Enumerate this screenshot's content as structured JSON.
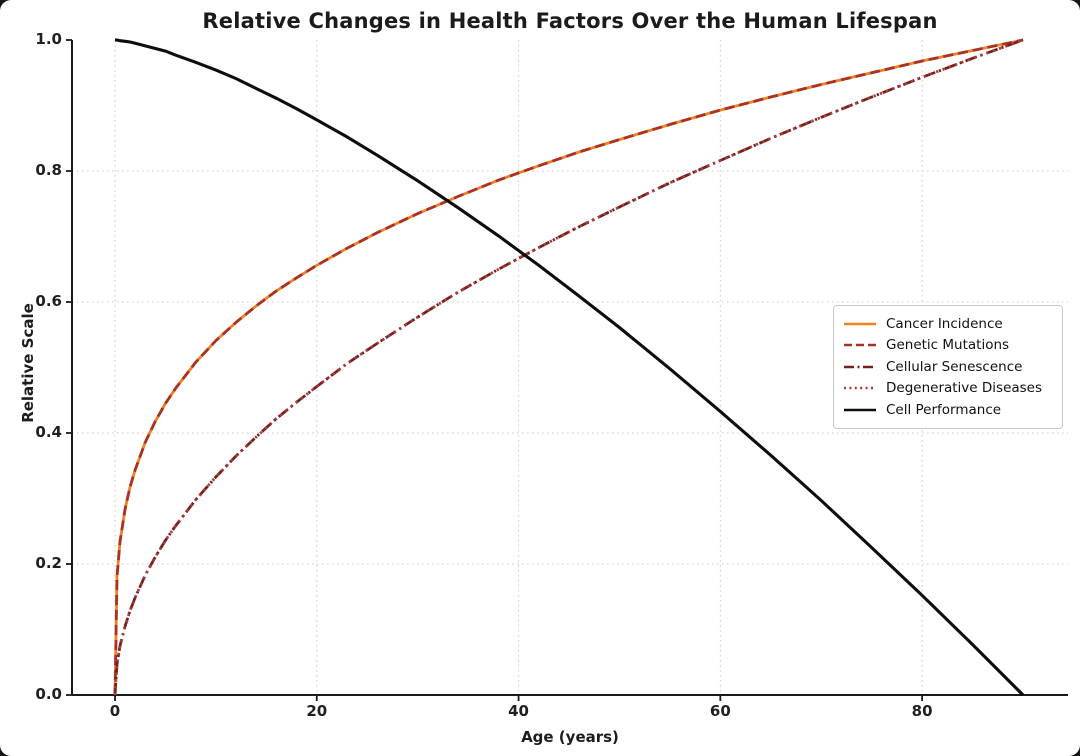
{
  "chart_data": {
    "type": "line",
    "title": "Relative Changes in Health Factors Over the Human Lifespan",
    "xlabel": "Age (years)",
    "ylabel": "Relative Scale",
    "xlim": [
      -4.3,
      94.5
    ],
    "ylim": [
      0,
      1.0
    ],
    "x_ticks": [
      0,
      20,
      40,
      60,
      80
    ],
    "y_ticks": [
      0,
      0.2,
      0.4,
      0.6,
      0.8,
      1.0
    ],
    "x_tick_labels": [
      "0",
      "20",
      "40",
      "60",
      "80"
    ],
    "y_tick_labels": [
      "0.0",
      "0.2",
      "0.4",
      "0.6",
      "0.8",
      "1.0"
    ],
    "grid": "dotted light-gray at every tick",
    "legend_position": "center right",
    "x": [
      0,
      0.2,
      0.5,
      1,
      1.5,
      2,
      3,
      4,
      5,
      6,
      8,
      10,
      12,
      14,
      16,
      18,
      20,
      23,
      26,
      30,
      34,
      38,
      42,
      46,
      50,
      55,
      60,
      65,
      70,
      75,
      80,
      85,
      90
    ],
    "series": [
      {
        "name": "Cancer Incidence",
        "color": "#EE8122",
        "style": "solid",
        "values": [
          0,
          0.181,
          0.234,
          0.284,
          0.318,
          0.344,
          0.386,
          0.418,
          0.445,
          0.468,
          0.508,
          0.541,
          0.569,
          0.594,
          0.617,
          0.637,
          0.656,
          0.682,
          0.706,
          0.735,
          0.761,
          0.786,
          0.808,
          0.829,
          0.848,
          0.871,
          0.893,
          0.913,
          0.932,
          0.95,
          0.968,
          0.984,
          1.0
        ]
      },
      {
        "name": "Genetic Mutations",
        "color": "#A93226",
        "style": "dashed",
        "values": [
          0,
          0.181,
          0.234,
          0.284,
          0.318,
          0.344,
          0.386,
          0.418,
          0.445,
          0.468,
          0.508,
          0.541,
          0.569,
          0.594,
          0.617,
          0.637,
          0.656,
          0.682,
          0.706,
          0.735,
          0.761,
          0.786,
          0.808,
          0.829,
          0.848,
          0.871,
          0.893,
          0.913,
          0.932,
          0.95,
          0.968,
          0.984,
          1.0
        ]
      },
      {
        "name": "Cellular Senescence",
        "color": "#72231D",
        "style": "dashdot",
        "values": [
          0,
          0.047,
          0.075,
          0.105,
          0.129,
          0.149,
          0.183,
          0.211,
          0.236,
          0.258,
          0.298,
          0.333,
          0.365,
          0.394,
          0.422,
          0.447,
          0.471,
          0.506,
          0.537,
          0.577,
          0.615,
          0.65,
          0.683,
          0.715,
          0.745,
          0.782,
          0.816,
          0.85,
          0.882,
          0.913,
          0.943,
          0.972,
          1.0
        ]
      },
      {
        "name": "Degenerative Diseases",
        "color": "#AC3A3E",
        "style": "dotted",
        "values": [
          0,
          0.047,
          0.075,
          0.105,
          0.129,
          0.149,
          0.183,
          0.211,
          0.236,
          0.258,
          0.298,
          0.333,
          0.365,
          0.394,
          0.422,
          0.447,
          0.471,
          0.506,
          0.537,
          0.577,
          0.615,
          0.65,
          0.683,
          0.715,
          0.745,
          0.782,
          0.816,
          0.85,
          0.882,
          0.913,
          0.943,
          0.972,
          1.0
        ]
      },
      {
        "name": "Cell Performance",
        "color": "#0d0d0d",
        "style": "solid",
        "values": [
          1,
          1,
          0.999,
          0.998,
          0.997,
          0.995,
          0.991,
          0.987,
          0.983,
          0.977,
          0.966,
          0.954,
          0.941,
          0.926,
          0.911,
          0.895,
          0.878,
          0.852,
          0.824,
          0.785,
          0.744,
          0.701,
          0.656,
          0.609,
          0.561,
          0.498,
          0.433,
          0.366,
          0.297,
          0.225,
          0.152,
          0.077,
          0
        ]
      }
    ],
    "colors": {
      "grid": "#cbcbcb",
      "axis": "#1a1a1a",
      "background": "#ffffff"
    }
  }
}
